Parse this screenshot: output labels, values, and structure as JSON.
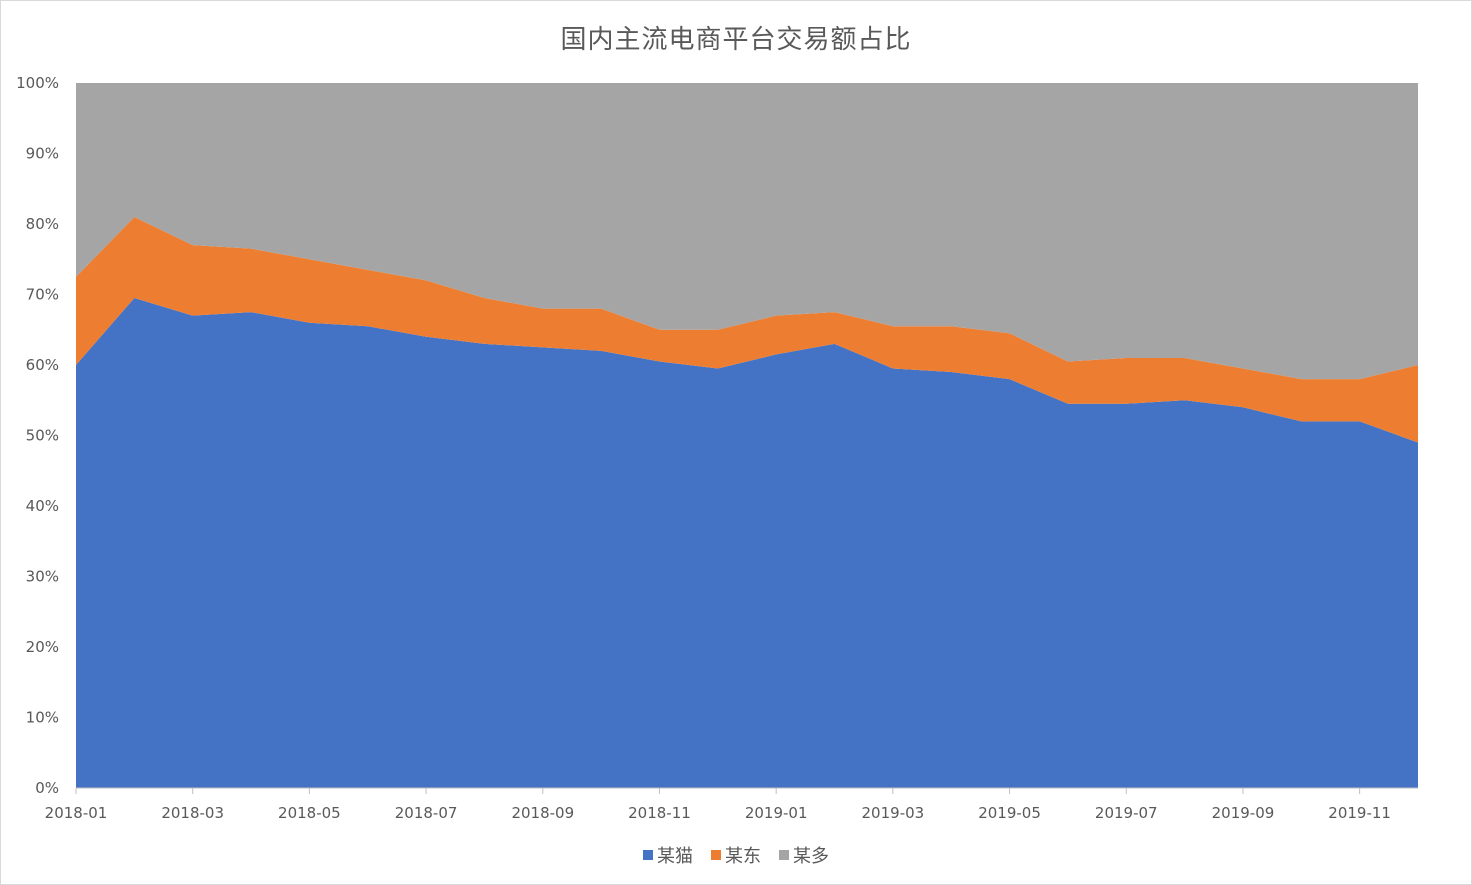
{
  "chart_data": {
    "type": "area",
    "stacked": "percent",
    "title": "国内主流电商平台交易额占比",
    "xlabel": "",
    "ylabel": "",
    "ylim": [
      0,
      100
    ],
    "y_ticks": [
      "0%",
      "10%",
      "20%",
      "30%",
      "40%",
      "50%",
      "60%",
      "70%",
      "80%",
      "90%",
      "100%"
    ],
    "x": [
      "2018-01",
      "2018-02",
      "2018-03",
      "2018-04",
      "2018-05",
      "2018-06",
      "2018-07",
      "2018-08",
      "2018-09",
      "2018-10",
      "2018-11",
      "2018-12",
      "2019-01",
      "2019-02",
      "2019-03",
      "2019-04",
      "2019-05",
      "2019-06",
      "2019-07",
      "2019-08",
      "2019-09",
      "2019-10",
      "2019-11",
      "2019-12"
    ],
    "x_tick_labels": [
      "2018-01",
      "2018-03",
      "2018-05",
      "2018-07",
      "2018-09",
      "2018-11",
      "2019-01",
      "2019-03",
      "2019-05",
      "2019-07",
      "2019-09",
      "2019-11"
    ],
    "series": [
      {
        "name": "某猫",
        "color": "#4472C4",
        "values": [
          60,
          69.5,
          67,
          67.5,
          66,
          65.5,
          64,
          63,
          62.5,
          62,
          60.5,
          59.5,
          61.5,
          63,
          59.5,
          59,
          58,
          54.5,
          54.5,
          55,
          54,
          52,
          52,
          49
        ]
      },
      {
        "name": "某东",
        "color": "#ED7D31",
        "values": [
          12.5,
          11.5,
          10,
          9,
          9,
          8,
          8,
          6.5,
          5.5,
          6,
          4.5,
          5.5,
          5.5,
          4.5,
          6,
          6.5,
          6.5,
          6,
          6.5,
          6,
          5.5,
          6,
          6,
          11
        ]
      },
      {
        "name": "某多",
        "color": "#A5A5A5",
        "values": [
          27.5,
          19,
          23,
          23.5,
          25,
          26.5,
          28,
          30.5,
          32,
          32,
          35,
          35,
          33,
          32.5,
          34.5,
          34.5,
          35.5,
          39.5,
          39,
          39,
          40.5,
          42,
          42,
          40
        ]
      }
    ],
    "grid": false,
    "legend_position": "bottom"
  }
}
